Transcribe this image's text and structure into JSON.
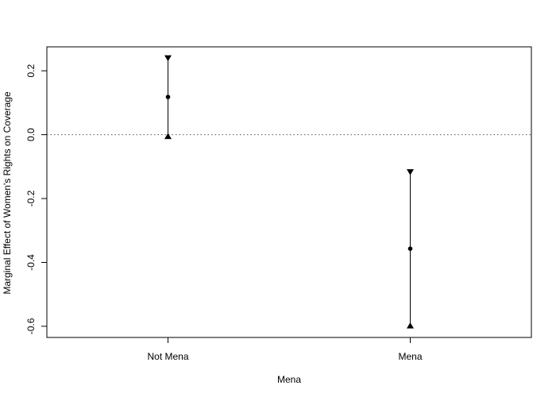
{
  "chart_data": {
    "type": "scatter",
    "title": "",
    "xlabel": "Mena",
    "ylabel": "Marginal Effect of Women's Rights on Coverage",
    "categories": [
      "Not Mena",
      "Mena"
    ],
    "points": [
      {
        "category": "Not Mena",
        "estimate": 0.118,
        "upper": 0.24,
        "lower": -0.005
      },
      {
        "category": "Mena",
        "estimate": -0.357,
        "upper": -0.117,
        "lower": -0.598
      }
    ],
    "reference_line": {
      "y": 0.0,
      "style": "dotted"
    },
    "y_ticks": [
      -0.6,
      -0.4,
      -0.2,
      0.0,
      0.2
    ],
    "y_tick_labels": [
      "-0.6",
      "-0.4",
      "-0.2",
      "0.0",
      "0.2"
    ],
    "ylim": [
      -0.635,
      0.275
    ],
    "xlim": [
      0.5,
      2.5
    ],
    "grid": false,
    "legend": "none",
    "colors": {
      "marks": "#000000",
      "background": "#ffffff"
    }
  }
}
